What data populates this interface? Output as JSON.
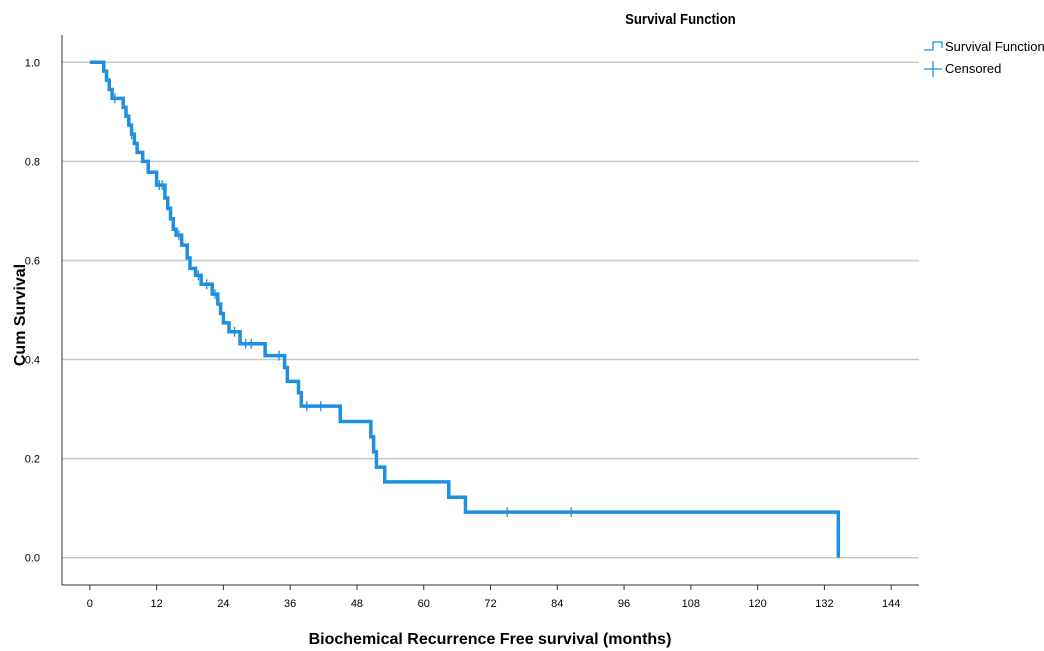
{
  "chart_data": {
    "type": "line",
    "title": "Survival Function",
    "xlabel": "Biochemical Recurrence Free survival (months)",
    "ylabel": "Cum Survival",
    "xlim": [
      -5,
      149
    ],
    "ylim": [
      -0.055,
      1.055
    ],
    "x_ticks": [
      "0",
      "12",
      "24",
      "36",
      "48",
      "60",
      "72",
      "84",
      "96",
      "108",
      "120",
      "132",
      "144"
    ],
    "y_ticks": [
      "0.0",
      "0.2",
      "0.4",
      "0.6",
      "0.8",
      "1.0"
    ],
    "grid": "horizontal",
    "legend": [
      "Survival Function",
      "Censored"
    ],
    "legend_position": "top-right",
    "line_color": "#1f8fe0",
    "series": [
      {
        "name": "Survival Function",
        "steps": [
          [
            0,
            1.0
          ],
          [
            2.5,
            0.982
          ],
          [
            3.0,
            0.964
          ],
          [
            3.5,
            0.945
          ],
          [
            4.0,
            0.927
          ],
          [
            6.0,
            0.909
          ],
          [
            6.5,
            0.891
          ],
          [
            7.0,
            0.873
          ],
          [
            7.5,
            0.855
          ],
          [
            8.0,
            0.836
          ],
          [
            8.5,
            0.818
          ],
          [
            9.5,
            0.8
          ],
          [
            10.5,
            0.778
          ],
          [
            12.0,
            0.752
          ],
          [
            13.5,
            0.726
          ],
          [
            14.0,
            0.705
          ],
          [
            14.5,
            0.684
          ],
          [
            15.0,
            0.663
          ],
          [
            15.5,
            0.651
          ],
          [
            16.5,
            0.631
          ],
          [
            17.5,
            0.605
          ],
          [
            18.0,
            0.584
          ],
          [
            19.0,
            0.57
          ],
          [
            20.0,
            0.552
          ],
          [
            22.0,
            0.532
          ],
          [
            23.0,
            0.512
          ],
          [
            23.5,
            0.493
          ],
          [
            24.0,
            0.474
          ],
          [
            25.0,
            0.456
          ],
          [
            27.0,
            0.432
          ],
          [
            31.5,
            0.408
          ],
          [
            35.0,
            0.384
          ],
          [
            35.5,
            0.356
          ],
          [
            37.5,
            0.333
          ],
          [
            38.0,
            0.306
          ],
          [
            45.0,
            0.275
          ],
          [
            50.5,
            0.244
          ],
          [
            51.0,
            0.214
          ],
          [
            51.5,
            0.183
          ],
          [
            53.0,
            0.153
          ],
          [
            64.5,
            0.122
          ],
          [
            67.5,
            0.092
          ],
          [
            134.5,
            0.0
          ]
        ],
        "end_x": 134.5,
        "censored": [
          [
            4.5,
            0.927
          ],
          [
            7.5,
            0.855
          ],
          [
            12.5,
            0.752
          ],
          [
            13.0,
            0.752
          ],
          [
            16.0,
            0.651
          ],
          [
            19.5,
            0.57
          ],
          [
            21.0,
            0.552
          ],
          [
            22.5,
            0.532
          ],
          [
            26.0,
            0.456
          ],
          [
            28.0,
            0.432
          ],
          [
            29.0,
            0.432
          ],
          [
            34.0,
            0.408
          ],
          [
            39.0,
            0.306
          ],
          [
            41.5,
            0.306
          ],
          [
            75.0,
            0.092
          ],
          [
            86.5,
            0.092
          ]
        ]
      }
    ]
  }
}
